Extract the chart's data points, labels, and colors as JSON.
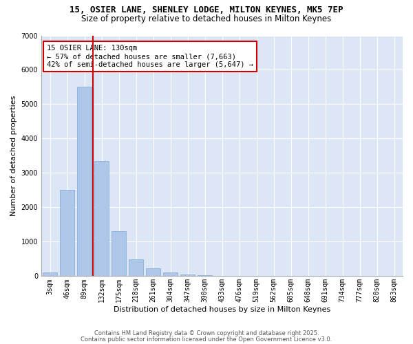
{
  "title_line1": "15, OSIER LANE, SHENLEY LODGE, MILTON KEYNES, MK5 7EP",
  "title_line2": "Size of property relative to detached houses in Milton Keynes",
  "xlabel": "Distribution of detached houses by size in Milton Keynes",
  "ylabel": "Number of detached properties",
  "categories": [
    "3sqm",
    "46sqm",
    "89sqm",
    "132sqm",
    "175sqm",
    "218sqm",
    "261sqm",
    "304sqm",
    "347sqm",
    "390sqm",
    "433sqm",
    "476sqm",
    "519sqm",
    "562sqm",
    "605sqm",
    "648sqm",
    "691sqm",
    "734sqm",
    "777sqm",
    "820sqm",
    "863sqm"
  ],
  "values": [
    100,
    2500,
    5500,
    3350,
    1300,
    480,
    220,
    100,
    50,
    30,
    0,
    0,
    0,
    0,
    0,
    0,
    0,
    0,
    0,
    0,
    0
  ],
  "bar_color": "#aec6e8",
  "bar_edge_color": "#7aaad4",
  "vline_x_index": 2.5,
  "vline_color": "#cc0000",
  "annotation_text": "15 OSIER LANE: 130sqm\n← 57% of detached houses are smaller (7,663)\n42% of semi-detached houses are larger (5,647) →",
  "annotation_box_color": "#ffffff",
  "annotation_box_edge_color": "#cc0000",
  "ylim": [
    0,
    7000
  ],
  "yticks": [
    0,
    1000,
    2000,
    3000,
    4000,
    5000,
    6000,
    7000
  ],
  "plot_bg_color": "#dce6f5",
  "fig_bg_color": "#ffffff",
  "footer_line1": "Contains HM Land Registry data © Crown copyright and database right 2025.",
  "footer_line2": "Contains public sector information licensed under the Open Government Licence v3.0.",
  "title1_fontsize": 9,
  "title2_fontsize": 8.5,
  "axis_label_fontsize": 8,
  "tick_fontsize": 7,
  "annotation_fontsize": 7.5,
  "footer_fontsize": 6
}
